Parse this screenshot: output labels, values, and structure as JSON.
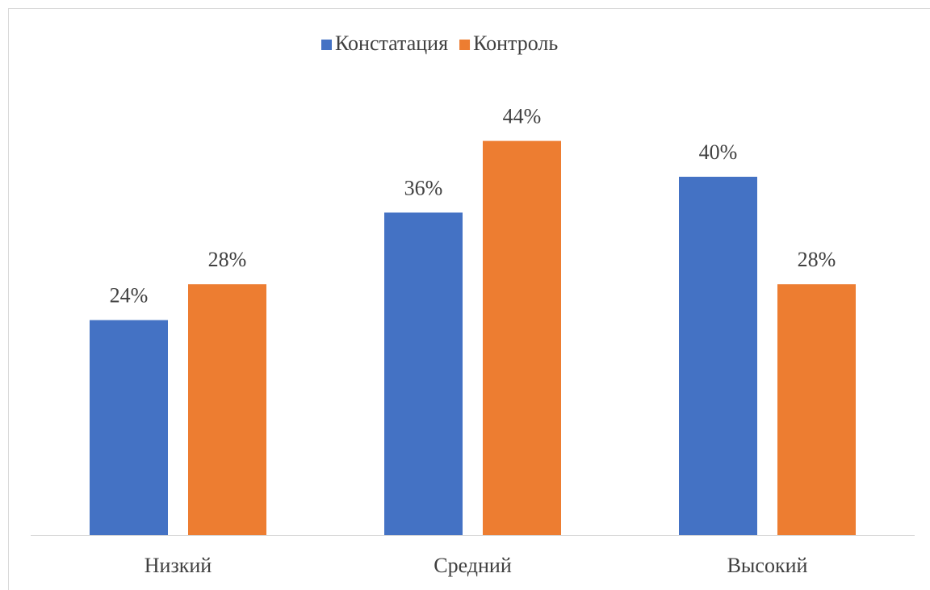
{
  "chart_data": {
    "type": "bar",
    "categories": [
      "Низкий",
      "Средний",
      "Высокий"
    ],
    "series": [
      {
        "name": "Констатация",
        "color": "#4472c4",
        "values": [
          24,
          36,
          40
        ],
        "value_labels": [
          "24%",
          "36%",
          "40%"
        ]
      },
      {
        "name": "Контроль",
        "color": "#ed7d31",
        "values": [
          28,
          44,
          28
        ],
        "value_labels": [
          "28%",
          "44%",
          "28%"
        ]
      }
    ],
    "ylim": [
      0,
      50
    ],
    "legend": "top"
  }
}
